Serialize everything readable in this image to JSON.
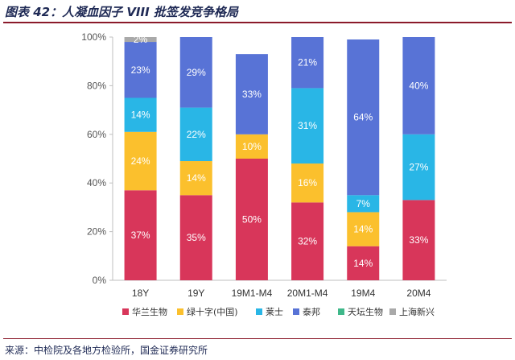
{
  "header": {
    "title": "图表 42：人凝血因子 VIII 批签发竞争格局"
  },
  "footer": {
    "source": "来源：中检院及各地方检验所，国金证券研究所"
  },
  "chart_data": {
    "type": "bar",
    "stacked": true,
    "categories": [
      "18Y",
      "19Y",
      "19M1-M4",
      "20M1-M4",
      "19M4",
      "20M4"
    ],
    "series": [
      {
        "name": "华兰生物",
        "color": "#d8365a",
        "values": [
          37,
          35,
          50,
          32,
          14,
          33
        ]
      },
      {
        "name": "绿十字(中国)",
        "color": "#fbc02d",
        "values": [
          24,
          14,
          10,
          16,
          14,
          0
        ]
      },
      {
        "name": "莱士",
        "color": "#29b6e6",
        "values": [
          14,
          22,
          0,
          31,
          7,
          27
        ]
      },
      {
        "name": "泰邦",
        "color": "#5873d6",
        "values": [
          23,
          29,
          33,
          21,
          64,
          40
        ]
      },
      {
        "name": "天坛生物",
        "color": "#3fb88a",
        "values": [
          0,
          0,
          0,
          0,
          0,
          0
        ]
      },
      {
        "name": "上海新兴",
        "color": "#a9a9a9",
        "values": [
          2,
          0,
          0,
          0,
          0,
          0
        ]
      }
    ],
    "data_labels": [
      [
        "37%",
        "35%",
        "50%",
        "32%",
        "14%",
        "33%"
      ],
      [
        "24%",
        "14%",
        "10%",
        "16%",
        "14%",
        ""
      ],
      [
        "14%",
        "22%",
        "",
        "31%",
        "7%",
        "27%"
      ],
      [
        "23%",
        "29%",
        "33%",
        "21%",
        "64%",
        "40%"
      ],
      [
        "",
        "",
        "",
        "",
        "",
        ""
      ],
      [
        "2%",
        "",
        "",
        "",
        "",
        ""
      ]
    ],
    "y_ticks": [
      "0%",
      "20%",
      "40%",
      "60%",
      "80%",
      "100%"
    ],
    "ylim": [
      0,
      100
    ],
    "grid": false,
    "legend_position": "bottom"
  }
}
